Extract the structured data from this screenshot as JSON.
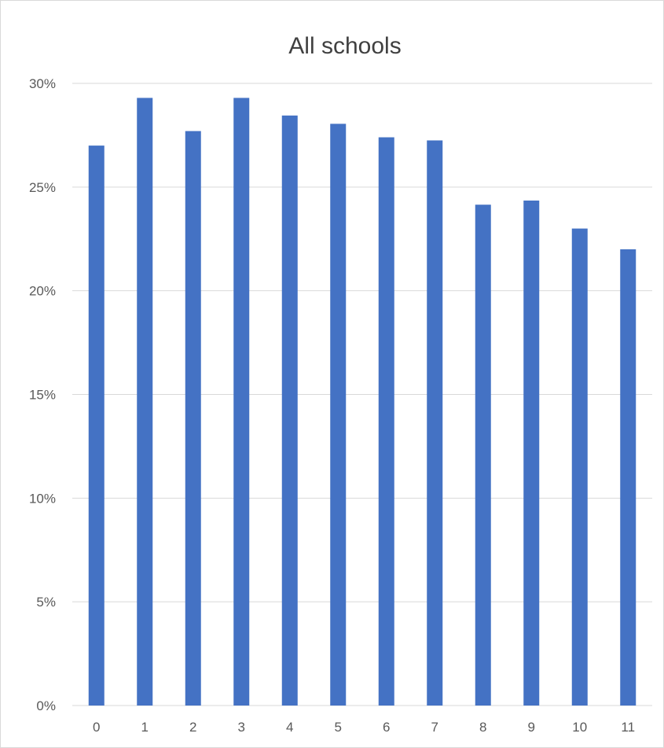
{
  "chart_data": {
    "type": "bar",
    "title": "All schools",
    "xlabel": "",
    "ylabel": "",
    "categories": [
      "0",
      "1",
      "2",
      "3",
      "4",
      "5",
      "6",
      "7",
      "8",
      "9",
      "10",
      "11"
    ],
    "values": [
      0.27,
      0.293,
      0.277,
      0.293,
      0.2845,
      0.2805,
      0.274,
      0.2725,
      0.2415,
      0.2435,
      0.23,
      0.22
    ],
    "ylim": [
      0,
      0.3
    ],
    "yticks": [
      0,
      0.05,
      0.1,
      0.15,
      0.2,
      0.25,
      0.3
    ],
    "ytick_labels": [
      "0%",
      "5%",
      "10%",
      "15%",
      "20%",
      "25%",
      "30%"
    ],
    "grid": true,
    "legend": "none",
    "colors": {
      "bar": "#4472C4",
      "grid": "#d9d9d9",
      "axis": "#d9d9d9"
    }
  }
}
